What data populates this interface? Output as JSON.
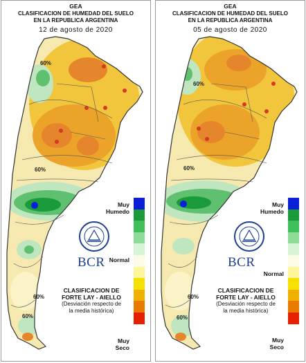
{
  "header": {
    "line1": "GEA",
    "line2": "CLASIFICACION DE HUMEDAD DEL SUELO",
    "line3": "EN LA REPUBLICA ARGENTINA"
  },
  "maps": [
    {
      "date": "12 de agosto de 2020",
      "isolines": [
        "60%",
        "60%",
        "60%",
        "60%"
      ]
    },
    {
      "date": "05 de agosto de 2020",
      "isolines": [
        "60%",
        "60%",
        "60%",
        "60%"
      ]
    }
  ],
  "legend": {
    "top_label": "Muy\nHumedo",
    "mid_label": "Normal",
    "bottom_label": "Muy\nSeco",
    "colors": [
      "#0a1fd6",
      "#1a9a3a",
      "#3fbf5a",
      "#8fdc9a",
      "#d6f5d6",
      "#fbfbe6",
      "#fff59a",
      "#f6e000",
      "#f0b000",
      "#e97a00",
      "#e42000"
    ]
  },
  "logo": {
    "text": "BCR",
    "seal_text": "BOLSA DE COMERCIO DE ROSARIO"
  },
  "note": {
    "line1": "CLASIFICACION DE",
    "line2": "FORTE LAY - AIELLO",
    "line3": "(Desviación respecto de",
    "line4": "la media histórica)"
  }
}
